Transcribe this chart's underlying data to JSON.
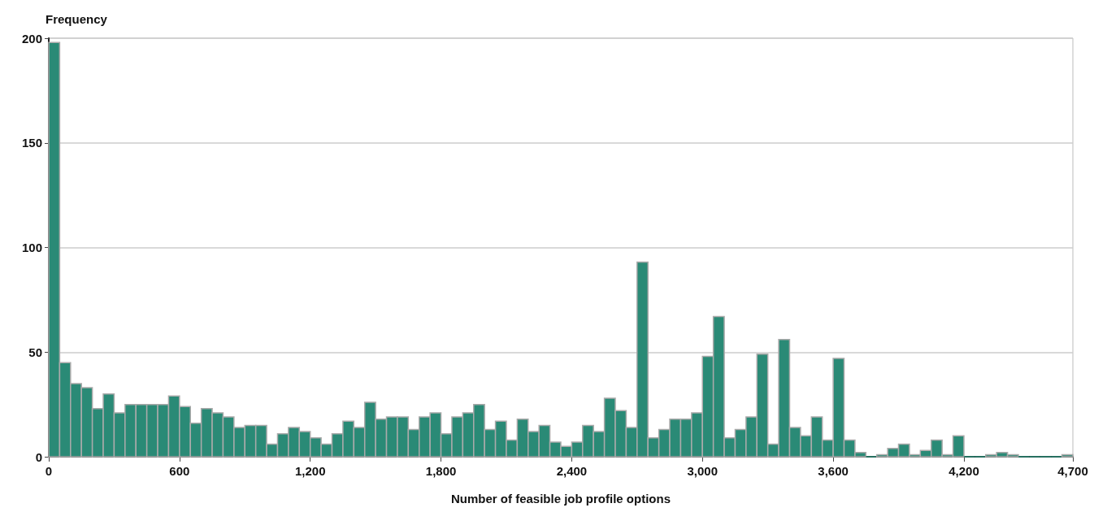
{
  "chart_data": {
    "type": "histogram",
    "xlabel": "Number of feasible job profile options",
    "ylabel": "Frequency",
    "color": "#2a8a76",
    "bins": [
      0,
      50,
      100,
      150,
      200,
      250,
      300,
      350,
      400,
      450,
      500,
      550,
      600,
      650,
      700,
      750,
      800,
      850,
      900,
      950,
      1000,
      1050,
      1100,
      1150,
      1200,
      1250,
      1300,
      1350,
      1400,
      1450,
      1500,
      1550,
      1600,
      1650,
      1700,
      1750,
      1800,
      1850,
      1900,
      1950,
      2000,
      2050,
      2100,
      2150,
      2200,
      2250,
      2300,
      2350,
      2400,
      2450,
      2500,
      2550,
      2600,
      2650,
      2700,
      2750,
      2800,
      2850,
      2900,
      2950,
      3000,
      3050,
      3100,
      3150,
      3200,
      3250,
      3300,
      3350,
      3400,
      3450,
      3500,
      3550,
      3600,
      3650,
      3700,
      3750,
      3800,
      3850,
      3900,
      3950,
      4000,
      4050,
      4100,
      4150,
      4200,
      4250,
      4300,
      4350,
      4400,
      4450,
      4500,
      4550,
      4600,
      4650,
      4700
    ],
    "values": [
      198,
      45,
      35,
      33,
      23,
      30,
      21,
      25,
      25,
      25,
      25,
      29,
      24,
      16,
      23,
      21,
      19,
      14,
      15,
      15,
      6,
      11,
      14,
      12,
      9,
      6,
      11,
      17,
      14,
      26,
      18,
      19,
      19,
      13,
      19,
      21,
      11,
      19,
      21,
      25,
      13,
      17,
      8,
      18,
      12,
      15,
      7,
      5,
      7,
      15,
      12,
      28,
      22,
      14,
      93,
      9,
      13,
      18,
      18,
      21,
      48,
      67,
      9,
      13,
      19,
      49,
      6,
      56,
      14,
      10,
      19,
      8,
      47,
      8,
      2,
      0,
      1,
      4,
      6,
      1,
      3,
      8,
      1,
      10,
      0,
      0,
      1,
      2,
      1,
      0,
      0,
      0,
      0,
      1
    ],
    "xlim": [
      0,
      4700
    ],
    "ylim": [
      0,
      200
    ],
    "xticks": [
      0,
      600,
      {
        "value": 1200,
        "label": "1,200"
      },
      {
        "value": 1800,
        "label": "1,800"
      },
      {
        "value": 2400,
        "label": "2,400"
      },
      {
        "value": 3000,
        "label": "3,000"
      },
      {
        "value": 3600,
        "label": "3,600"
      },
      {
        "value": 4200,
        "label": "4,200"
      },
      {
        "value": 4700,
        "label": "4,700"
      }
    ],
    "yticks": [
      0,
      50,
      100,
      150,
      200
    ],
    "grid": "y"
  }
}
